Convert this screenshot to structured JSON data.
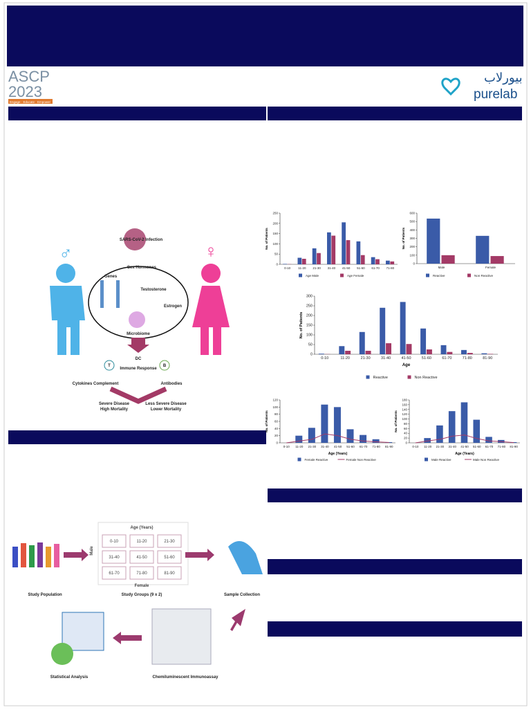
{
  "header": {
    "organization": "ASCP",
    "year": "2023",
    "tagline": "Engage · Educate · Empower",
    "partner": "purelab",
    "partner_arabic": "بيورلاب"
  },
  "figure_1": {
    "infection": "SARS-CoV-2 Infection",
    "hormones": "Sex Hormones",
    "genes": "Genes",
    "testosterone": "Testosterone",
    "estrogen": "Estrogen",
    "microbiome": "Microbiome",
    "dc": "DC",
    "immune": "Immune Response",
    "t_cell": "T",
    "b_cell": "B",
    "cytokines": "Cytokines Complement",
    "antibodies": "Antibodies",
    "severe": [
      "Severe Disease",
      "High Mortality"
    ],
    "less_severe": [
      "Less Severe Disease",
      "Lower Mortality"
    ]
  },
  "figure_2": {
    "age_title": "Age (Years)",
    "male": "Male",
    "female": "Female",
    "groups": [
      "0-10",
      "11-20",
      "21-30",
      "31-40",
      "41-50",
      "51-60",
      "61-70",
      "71-80",
      "81-90"
    ],
    "steps": [
      "Study Population",
      "Study Groups (9 x 2)",
      "Sample Collection",
      "Chemiluminescent Immunoassay",
      "Statistical Analysis"
    ]
  },
  "chart_data": [
    {
      "type": "bar",
      "y_label": "No. of Patients",
      "categories": [
        "0-10",
        "11-20",
        "21-30",
        "31-40",
        "41-50",
        "51-60",
        "61-70",
        "71-80"
      ],
      "series": [
        {
          "name": "Age Male",
          "color": "#3a5ba8",
          "values": [
            2,
            32,
            78,
            156,
            205,
            112,
            35,
            18
          ]
        },
        {
          "name": "Age Female",
          "color": "#a33a66",
          "values": [
            1,
            27,
            55,
            140,
            118,
            45,
            25,
            14
          ]
        }
      ],
      "ylim": [
        0,
        250
      ],
      "yticks": [
        0,
        50,
        100,
        150,
        200,
        250
      ]
    },
    {
      "type": "bar",
      "y_label": "No. of Patients",
      "categories": [
        "Male",
        "Female"
      ],
      "series": [
        {
          "name": "Reactive",
          "color": "#3a5ba8",
          "values": [
            535,
            330
          ]
        },
        {
          "name": "Non Reactive",
          "color": "#a33a66",
          "values": [
            100,
            90
          ]
        }
      ],
      "ylim": [
        0,
        600
      ],
      "yticks": [
        0,
        100,
        200,
        300,
        400,
        500,
        600
      ]
    },
    {
      "type": "bar",
      "y_label": "No. of Patients",
      "x_label": "Age",
      "categories": [
        "0-10",
        "11-20",
        "21-30",
        "31-40",
        "41-50",
        "51-60",
        "61-70",
        "71-80",
        "81-90"
      ],
      "series": [
        {
          "name": "Reactive",
          "color": "#3a5ba8",
          "values": [
            3,
            42,
            115,
            240,
            270,
            133,
            47,
            22,
            5
          ]
        },
        {
          "name": "Non Reactive",
          "color": "#a33a66",
          "values": [
            1,
            18,
            18,
            57,
            53,
            25,
            12,
            7,
            2
          ]
        }
      ],
      "ylim": [
        0,
        300
      ],
      "yticks": [
        0,
        50,
        100,
        150,
        200,
        250,
        300
      ]
    },
    {
      "type": "bar",
      "y_label": "No. of Patients",
      "x_label": "Age (Years)",
      "categories": [
        "0-10",
        "11-20",
        "21-30",
        "31-40",
        "41-50",
        "51-60",
        "61-70",
        "71-80",
        "81-90"
      ],
      "series": [
        {
          "name": "Female Reactive",
          "color": "#3a5ba8",
          "values": [
            0,
            20,
            42,
            107,
            100,
            38,
            22,
            10,
            2
          ]
        },
        {
          "name": "Female Non Reactive",
          "color": "#a33a66",
          "kind": "line",
          "values": [
            0,
            5,
            10,
            25,
            20,
            10,
            5,
            3,
            1
          ]
        }
      ],
      "ylim": [
        0,
        120
      ],
      "yticks": [
        0,
        20,
        40,
        60,
        80,
        100,
        120
      ]
    },
    {
      "type": "bar",
      "y_label": "No. of Patients",
      "x_label": "Age (Years)",
      "categories": [
        "0-10",
        "11-20",
        "21-30",
        "31-40",
        "41-50",
        "51-60",
        "61-70",
        "71-80",
        "81-90"
      ],
      "series": [
        {
          "name": "Male Reactive",
          "color": "#3a5ba8",
          "values": [
            0,
            20,
            73,
            133,
            170,
            97,
            25,
            12,
            3
          ]
        },
        {
          "name": "Male Non Reactive",
          "color": "#a33a66",
          "kind": "line",
          "values": [
            0,
            8,
            15,
            28,
            33,
            18,
            8,
            5,
            1
          ]
        }
      ],
      "ylim": [
        0,
        180
      ],
      "yticks": [
        0,
        20,
        40,
        60,
        80,
        100,
        120,
        140,
        160,
        180
      ]
    }
  ]
}
